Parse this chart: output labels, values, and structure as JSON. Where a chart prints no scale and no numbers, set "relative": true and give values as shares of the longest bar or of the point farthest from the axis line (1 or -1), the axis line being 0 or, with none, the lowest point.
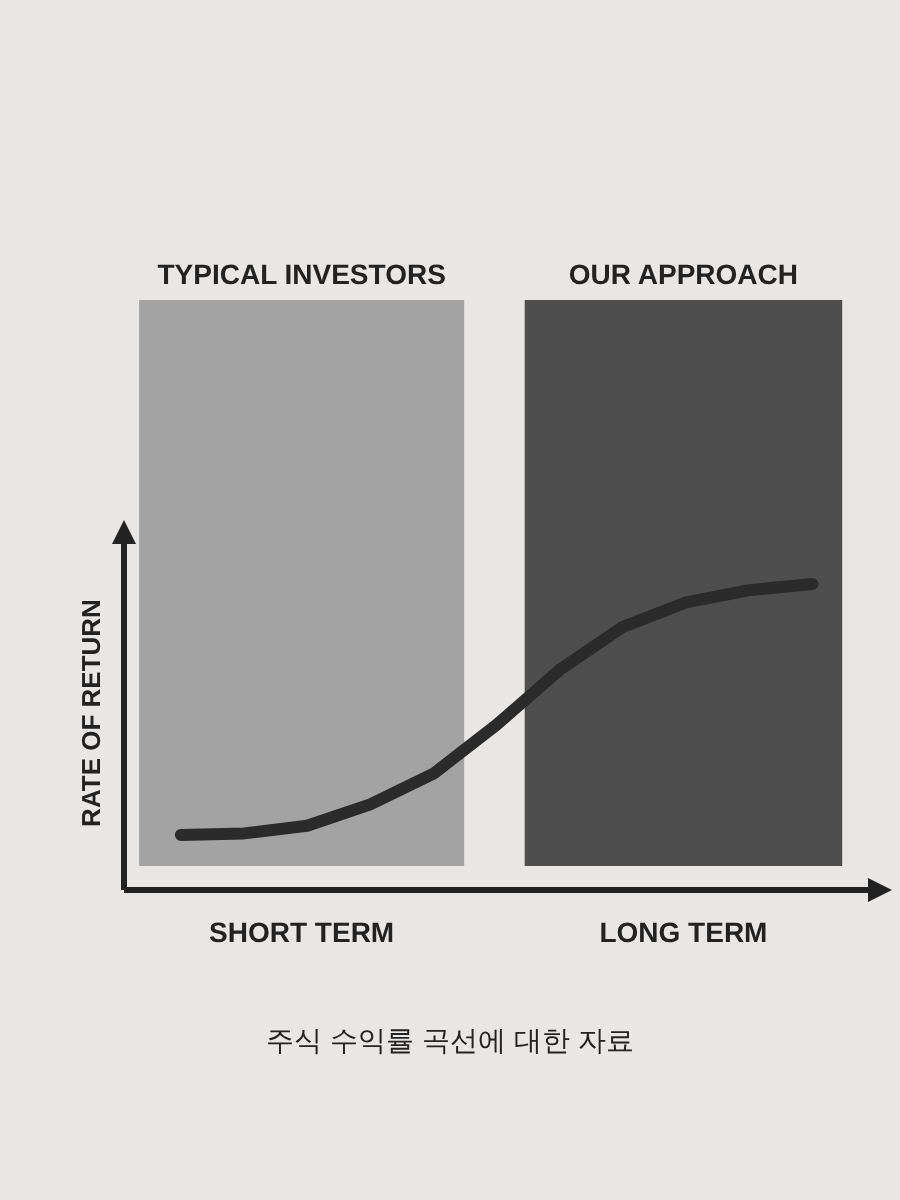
{
  "chart_data": {
    "type": "line",
    "relative": true,
    "ylabel": "RATE OF RETURN",
    "categories": [
      null,
      null,
      null,
      null,
      null,
      null,
      null,
      null,
      null,
      null,
      null
    ],
    "series": [
      {
        "color": "#2b2b2b",
        "values": [
          0.18,
          0.185,
          0.21,
          0.28,
          0.38,
          0.54,
          0.72,
          0.86,
          0.94,
          0.98,
          1
        ]
      }
    ],
    "annotations": [
      "TYPICAL INVESTORS",
      "OUR APPROACH",
      "SHORT TERM",
      "LONG TERM",
      "주식 수익률 곡선에 대한 자료"
    ]
  }
}
